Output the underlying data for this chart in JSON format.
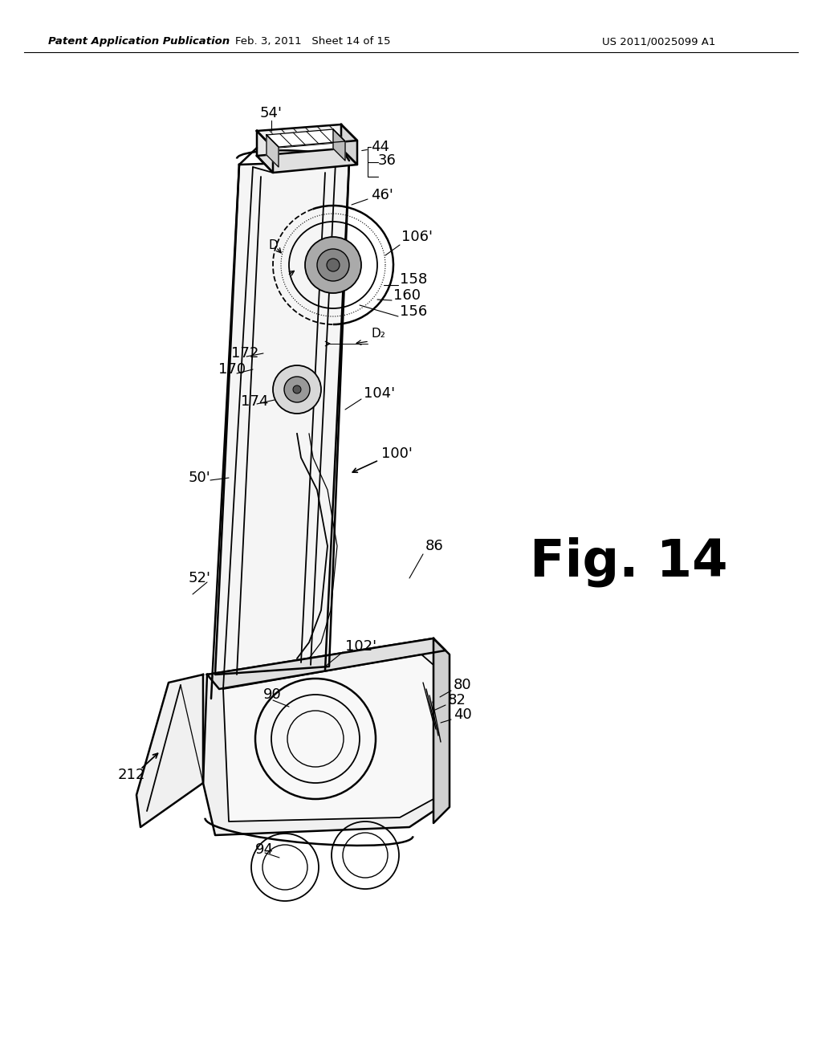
{
  "background_color": "#ffffff",
  "header_left": "Patent Application Publication",
  "header_center": "Feb. 3, 2011   Sheet 14 of 15",
  "header_right": "US 2011/0025099 A1",
  "fig_label": "Fig. 14"
}
